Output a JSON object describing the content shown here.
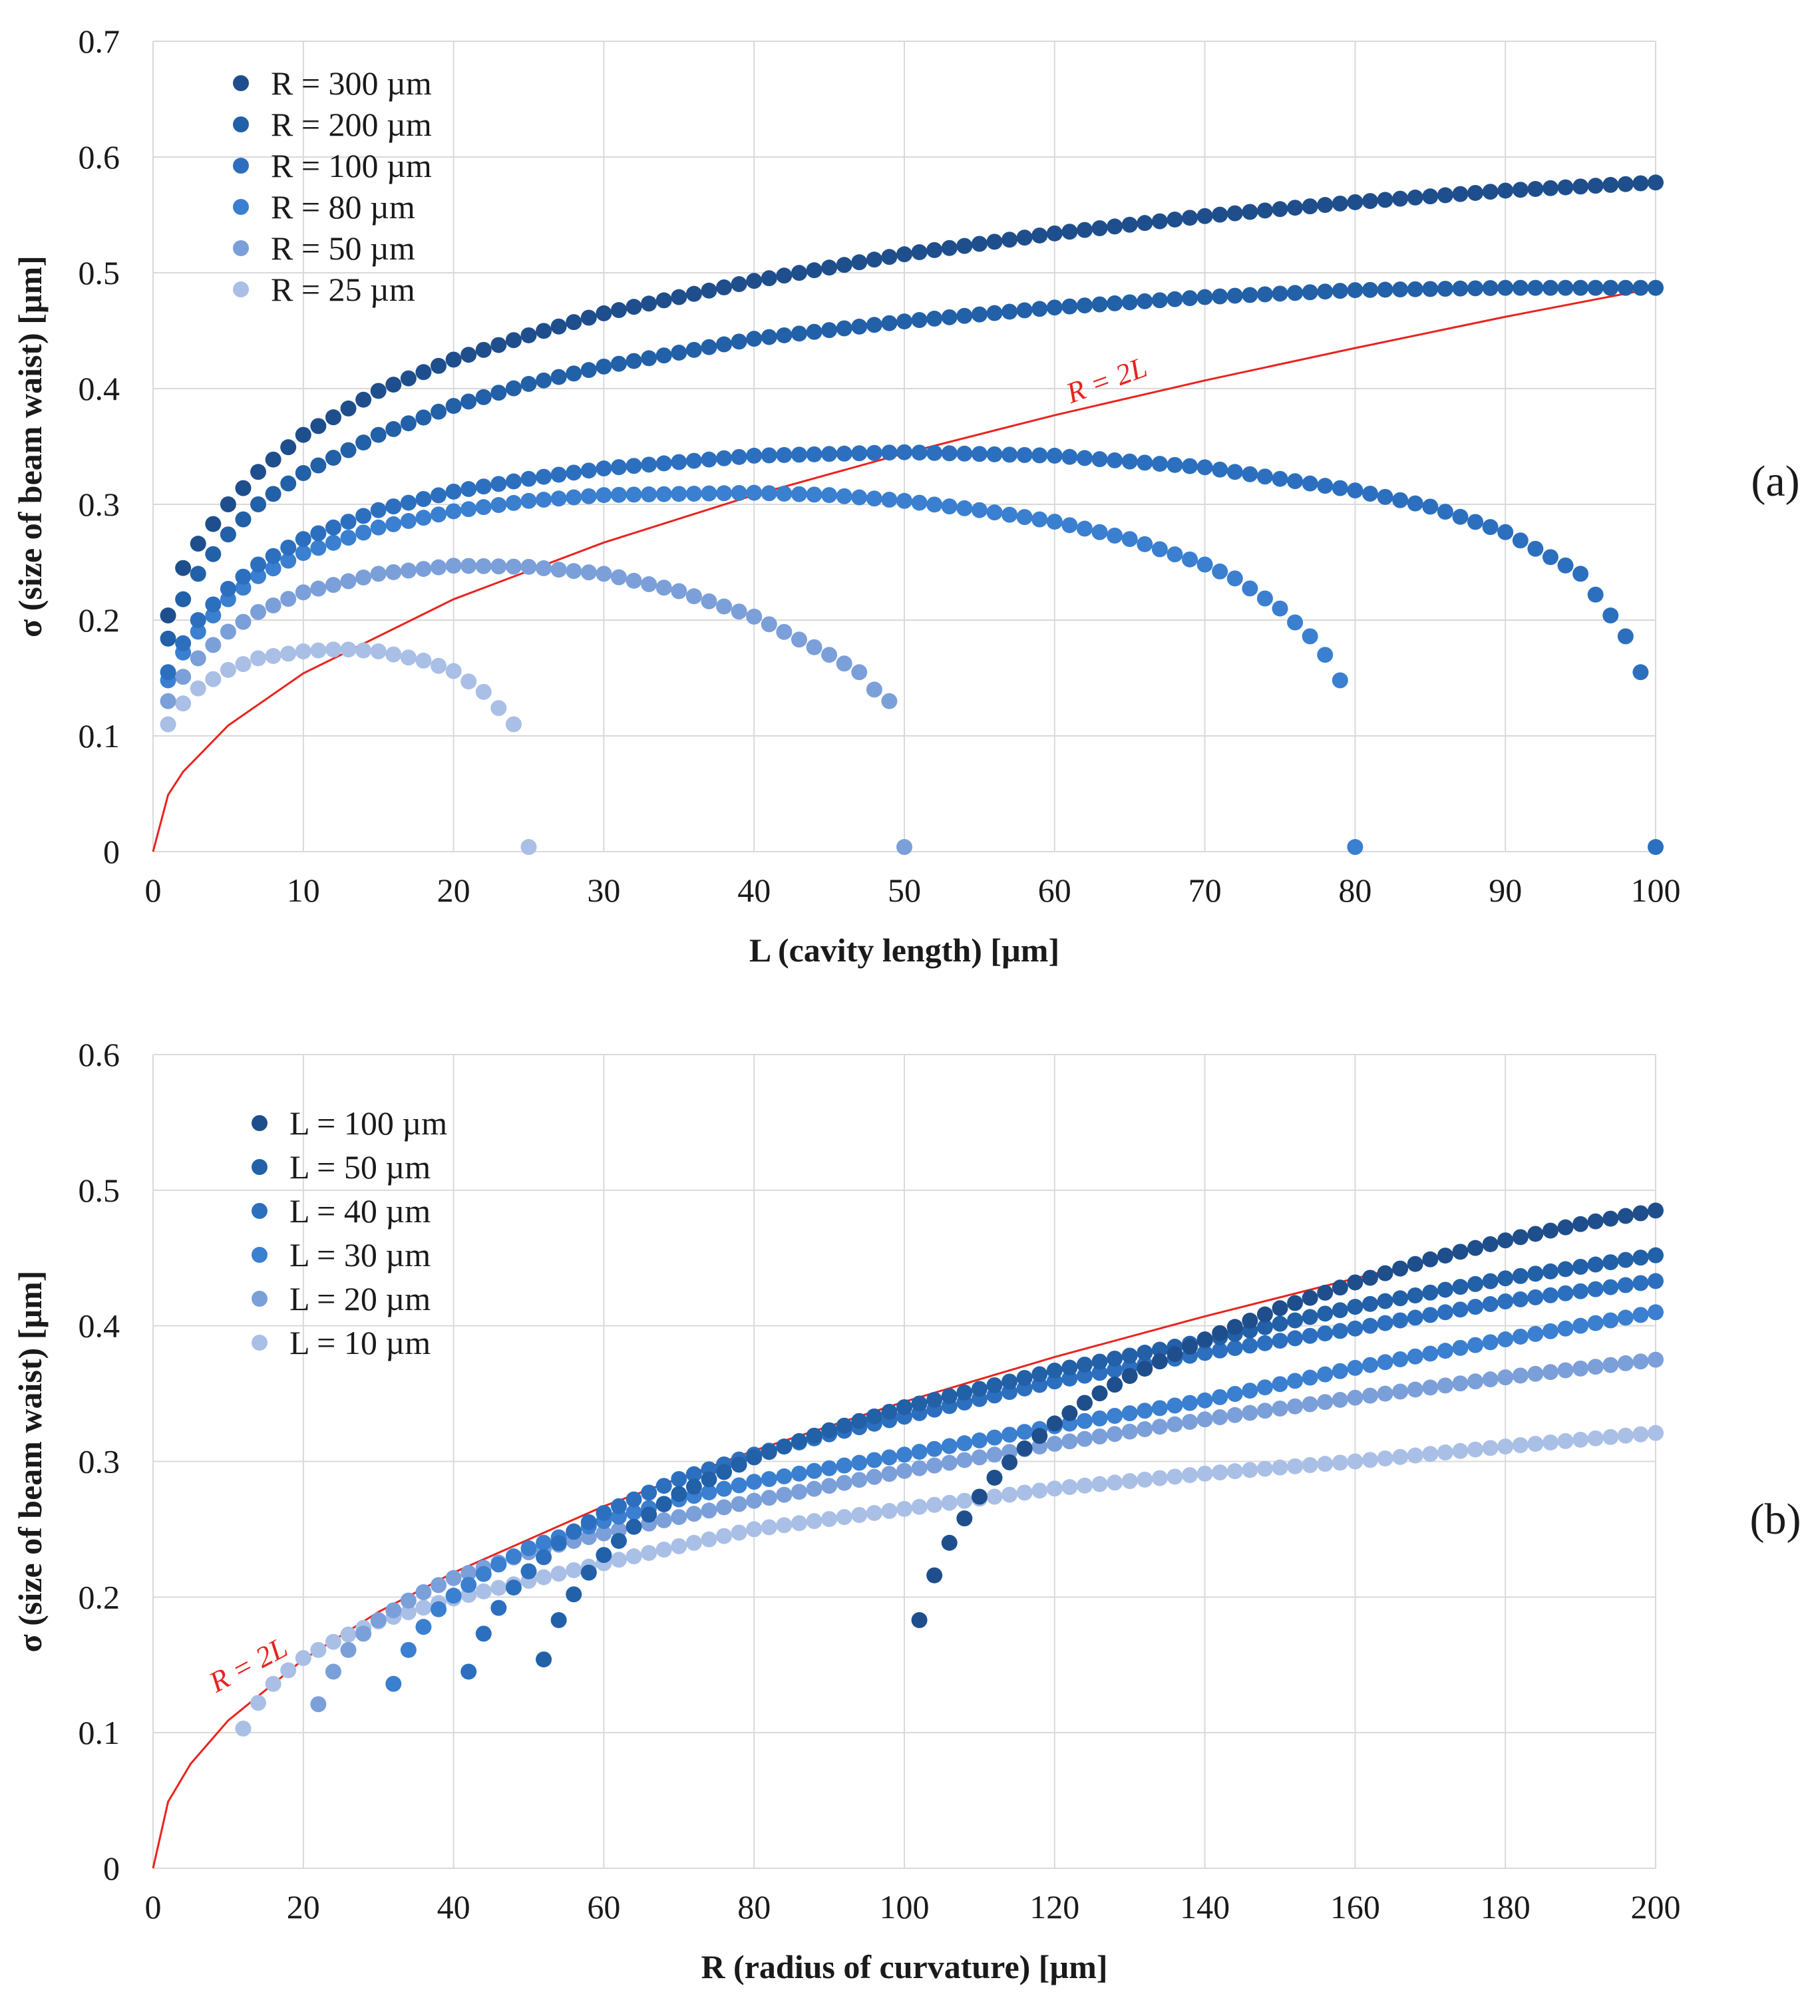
{
  "chart_data": [
    {
      "type": "scatter",
      "panel_label": "(a)",
      "xlabel": "L (cavity length) [µm]",
      "ylabel": "σ (size of beam waist) [µm]",
      "xlim": [
        0,
        100
      ],
      "ylim": [
        0,
        0.7
      ],
      "xticks": [
        "0",
        "10",
        "20",
        "30",
        "40",
        "50",
        "60",
        "70",
        "80",
        "90",
        "100"
      ],
      "yticks": [
        "0",
        "0.1",
        "0.2",
        "0.3",
        "0.4",
        "0.5",
        "0.6",
        "0.7"
      ],
      "grid": true,
      "legend_position": "top-left",
      "annotation": "R = 2L",
      "series": [
        {
          "name": "R = 300 µm",
          "color": "#1f4e8c",
          "x": [
            1,
            2,
            3,
            5,
            7,
            10,
            15,
            20,
            25,
            30,
            40,
            50,
            60,
            70,
            80,
            90,
            100
          ],
          "y": [
            0.204,
            0.245,
            0.266,
            0.3,
            0.328,
            0.36,
            0.398,
            0.425,
            0.446,
            0.465,
            0.493,
            0.516,
            0.534,
            0.549,
            0.561,
            0.571,
            0.578
          ]
        },
        {
          "name": "R = 200 µm",
          "color": "#2260a8",
          "x": [
            1,
            2,
            3,
            5,
            7,
            10,
            15,
            20,
            25,
            30,
            40,
            50,
            60,
            70,
            80,
            90,
            100
          ],
          "y": [
            0.184,
            0.218,
            0.24,
            0.274,
            0.3,
            0.327,
            0.36,
            0.385,
            0.404,
            0.419,
            0.443,
            0.458,
            0.47,
            0.479,
            0.485,
            0.487,
            0.487
          ]
        },
        {
          "name": "R = 100 µm",
          "color": "#2c6fbf",
          "x": [
            1,
            2,
            3,
            5,
            7,
            10,
            15,
            20,
            25,
            30,
            40,
            50,
            60,
            70,
            80,
            85,
            90,
            95,
            98,
            99,
            100
          ],
          "y": [
            0.155,
            0.18,
            0.2,
            0.227,
            0.248,
            0.27,
            0.295,
            0.311,
            0.322,
            0.331,
            0.342,
            0.345,
            0.342,
            0.332,
            0.312,
            0.298,
            0.276,
            0.24,
            0.186,
            0.155,
            0.004
          ]
        },
        {
          "name": "R = 80 µm",
          "color": "#3a7fd0",
          "x": [
            1,
            2,
            3,
            5,
            7,
            10,
            15,
            20,
            25,
            30,
            40,
            45,
            50,
            55,
            60,
            65,
            70,
            72,
            75,
            77,
            78,
            79,
            80
          ],
          "y": [
            0.148,
            0.172,
            0.19,
            0.218,
            0.238,
            0.258,
            0.28,
            0.294,
            0.303,
            0.308,
            0.31,
            0.308,
            0.303,
            0.295,
            0.285,
            0.27,
            0.248,
            0.236,
            0.21,
            0.186,
            0.17,
            0.148,
            0.004
          ]
        },
        {
          "name": "R = 50 µm",
          "color": "#7b9fd9",
          "x": [
            1,
            2,
            3,
            5,
            7,
            10,
            15,
            20,
            25,
            30,
            35,
            40,
            45,
            47,
            48,
            49,
            50
          ],
          "y": [
            0.13,
            0.151,
            0.167,
            0.19,
            0.207,
            0.224,
            0.24,
            0.247,
            0.246,
            0.24,
            0.225,
            0.203,
            0.17,
            0.155,
            0.14,
            0.13,
            0.004
          ]
        },
        {
          "name": "R = 25 µm",
          "color": "#a9bfe6",
          "x": [
            1,
            2,
            3,
            5,
            7,
            10,
            12.5,
            15,
            18,
            20,
            22,
            23,
            24,
            25
          ],
          "y": [
            0.11,
            0.128,
            0.141,
            0.157,
            0.167,
            0.173,
            0.175,
            0.173,
            0.165,
            0.156,
            0.138,
            0.124,
            0.11,
            0.004
          ]
        }
      ],
      "line": {
        "name": "R = 2L",
        "color": "#e8231f",
        "x": [
          0,
          1,
          2,
          5,
          10,
          20,
          30,
          40,
          50,
          60,
          70,
          80,
          90,
          100
        ],
        "y": [
          0,
          0.049,
          0.069,
          0.109,
          0.154,
          0.218,
          0.267,
          0.308,
          0.344,
          0.377,
          0.407,
          0.435,
          0.462,
          0.487
        ]
      }
    },
    {
      "type": "scatter",
      "panel_label": "(b)",
      "xlabel": "R (radius of curvature) [µm]",
      "ylabel": "σ (size of beam waist) [µm]",
      "xlim": [
        0,
        200
      ],
      "ylim": [
        0,
        0.6
      ],
      "xticks": [
        "0",
        "20",
        "40",
        "60",
        "80",
        "100",
        "120",
        "140",
        "160",
        "180",
        "200"
      ],
      "yticks": [
        "0",
        "0.1",
        "0.2",
        "0.3",
        "0.4",
        "0.5",
        "0.6"
      ],
      "grid": true,
      "legend_position": "top-left",
      "annotation": "R = 2L",
      "series": [
        {
          "name": "L = 100 µm",
          "color": "#1f4e8c",
          "x": [
            102,
            104,
            106,
            108,
            110,
            112,
            115,
            120,
            125,
            130,
            140,
            150,
            160,
            170,
            180,
            190,
            200
          ],
          "y": [
            0.183,
            0.216,
            0.24,
            0.258,
            0.274,
            0.288,
            0.305,
            0.328,
            0.347,
            0.363,
            0.39,
            0.413,
            0.432,
            0.449,
            0.463,
            0.475,
            0.485
          ]
        },
        {
          "name": "L = 50 µm",
          "color": "#2260a8",
          "x": [
            52,
            54,
            56,
            58,
            60,
            65,
            70,
            80,
            90,
            100,
            120,
            140,
            160,
            180,
            200
          ],
          "y": [
            0.154,
            0.183,
            0.202,
            0.218,
            0.231,
            0.257,
            0.276,
            0.303,
            0.323,
            0.34,
            0.367,
            0.389,
            0.414,
            0.435,
            0.452
          ]
        },
        {
          "name": "L = 40 µm",
          "color": "#2c6fbf",
          "x": [
            42,
            44,
            46,
            48,
            50,
            55,
            60,
            70,
            80,
            90,
            100,
            120,
            140,
            160,
            180,
            200
          ],
          "y": [
            0.145,
            0.173,
            0.192,
            0.207,
            0.219,
            0.245,
            0.262,
            0.287,
            0.305,
            0.32,
            0.333,
            0.359,
            0.38,
            0.398,
            0.418,
            0.433
          ]
        },
        {
          "name": "L = 30 µm",
          "color": "#3a7fd0",
          "x": [
            32,
            34,
            36,
            38,
            40,
            45,
            50,
            60,
            70,
            80,
            100,
            120,
            140,
            160,
            180,
            200
          ],
          "y": [
            0.136,
            0.161,
            0.178,
            0.191,
            0.201,
            0.221,
            0.236,
            0.256,
            0.272,
            0.285,
            0.305,
            0.326,
            0.345,
            0.369,
            0.39,
            0.41
          ]
        },
        {
          "name": "L = 20 µm",
          "color": "#7b9fd9",
          "x": [
            22,
            24,
            26,
            28,
            30,
            35,
            40,
            50,
            60,
            70,
            80,
            100,
            120,
            140,
            160,
            180,
            200
          ],
          "y": [
            0.121,
            0.145,
            0.161,
            0.173,
            0.183,
            0.201,
            0.214,
            0.233,
            0.247,
            0.259,
            0.271,
            0.293,
            0.313,
            0.331,
            0.347,
            0.362,
            0.375
          ]
        },
        {
          "name": "L = 10 µm",
          "color": "#a9bfe6",
          "x": [
            12,
            14,
            16,
            18,
            20,
            25,
            30,
            40,
            50,
            60,
            80,
            100,
            120,
            140,
            160,
            180,
            200
          ],
          "y": [
            0.103,
            0.122,
            0.136,
            0.146,
            0.155,
            0.17,
            0.182,
            0.199,
            0.212,
            0.225,
            0.25,
            0.265,
            0.28,
            0.291,
            0.3,
            0.311,
            0.321
          ]
        }
      ],
      "line": {
        "name": "R = 2L",
        "color": "#e8231f",
        "x": [
          0,
          2,
          5,
          10,
          20,
          30,
          40,
          60,
          80,
          100,
          120,
          140,
          160,
          170
        ],
        "y": [
          0,
          0.049,
          0.077,
          0.109,
          0.154,
          0.189,
          0.218,
          0.267,
          0.308,
          0.344,
          0.377,
          0.407,
          0.435,
          0.448
        ]
      }
    }
  ]
}
